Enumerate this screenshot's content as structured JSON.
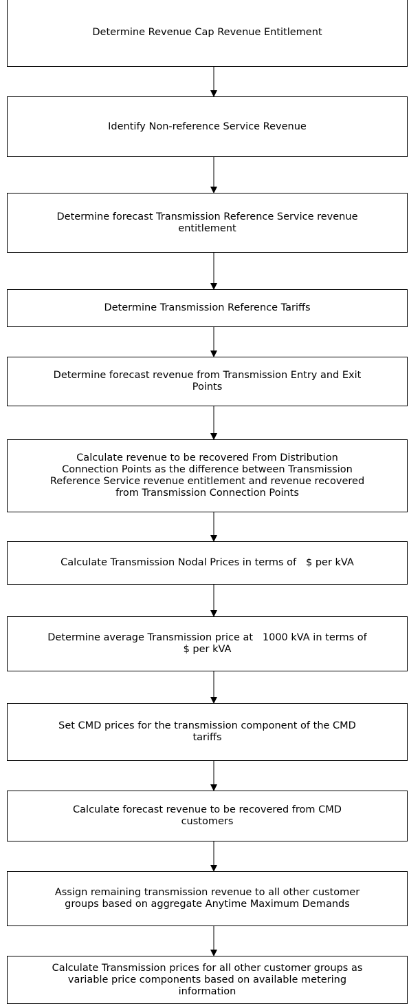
{
  "nodes": [
    {
      "lines": [
        "Determine Revenue Cap Revenue Entitlement"
      ]
    },
    {
      "lines": [
        "Identify Non-reference Service Revenue"
      ]
    },
    {
      "lines": [
        "Determine forecast Transmission Reference Service revenue",
        "entitlement"
      ]
    },
    {
      "lines": [
        "Determine Transmission Reference Tariffs"
      ]
    },
    {
      "lines": [
        "Determine forecast revenue from Transmission Entry and Exit",
        "Points"
      ]
    },
    {
      "lines": [
        "Calculate revenue to be recovered From Distribution",
        "Connection Points as the difference between Transmission",
        "Reference Service revenue entitlement and revenue recovered",
        "from Transmission Connection Points"
      ]
    },
    {
      "lines": [
        "Calculate Transmission Nodal Prices in terms of   $ per kVA"
      ]
    },
    {
      "lines": [
        "Determine average Transmission price at   1000 kVA in terms of",
        "$ per kVA"
      ]
    },
    {
      "lines": [
        "Set CMD prices for the transmission component of the CMD",
        "tariffs"
      ]
    },
    {
      "lines": [
        "Calculate forecast revenue to be recovered from CMD",
        "customers"
      ]
    },
    {
      "lines": [
        "Assign remaining transmission revenue to all other customer",
        "groups based on aggregate Anytime Maximum Demands"
      ]
    },
    {
      "lines": [
        "Calculate Transmission prices for all other customer groups as",
        "variable price components based on available metering",
        "information"
      ]
    }
  ]
}
